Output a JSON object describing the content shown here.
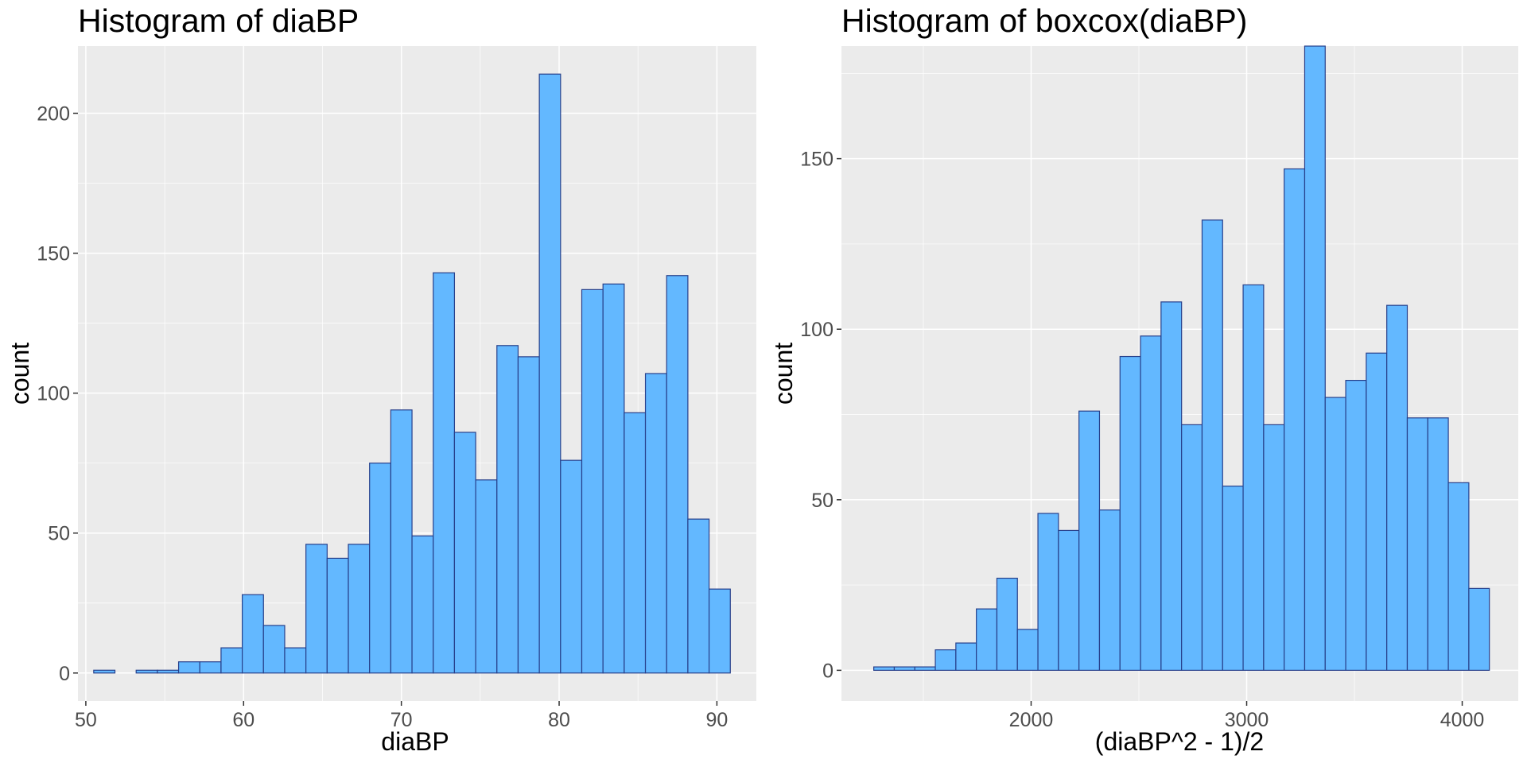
{
  "colors": {
    "bar_fill": "#63b8ff",
    "bar_outline": "#27408b",
    "panel_bg": "#ebebeb",
    "grid": "#ffffff"
  },
  "chart_data": [
    {
      "type": "bar",
      "title": "Histogram of diaBP",
      "xlabel": "diaBP",
      "ylabel": "count",
      "xlim": [
        49.5,
        92.5
      ],
      "ylim": [
        -10,
        224
      ],
      "xticks": [
        50,
        60,
        70,
        80,
        90
      ],
      "yticks": [
        0,
        50,
        100,
        150,
        200
      ],
      "grid": true,
      "bin_start": 50.5,
      "bin_width": 1.345,
      "values": [
        1,
        0,
        1,
        1,
        4,
        4,
        9,
        28,
        17,
        9,
        46,
        41,
        46,
        75,
        94,
        49,
        143,
        86,
        69,
        117,
        113,
        214,
        76,
        137,
        139,
        93,
        107,
        142,
        55,
        30
      ]
    },
    {
      "type": "bar",
      "title": "Histogram of boxcox(diaBP)",
      "xlabel": "(diaBP^2 - 1)/2",
      "ylabel": "count",
      "xlim": [
        1120,
        4260
      ],
      "ylim": [
        -9,
        183
      ],
      "xticks": [
        2000,
        3000,
        4000
      ],
      "yticks": [
        0,
        50,
        100,
        150
      ],
      "grid": true,
      "bin_start": 1270,
      "bin_width": 95.2,
      "values": [
        1,
        1,
        1,
        6,
        8,
        18,
        27,
        12,
        46,
        41,
        76,
        47,
        92,
        98,
        108,
        72,
        132,
        54,
        113,
        72,
        147,
        183,
        80,
        85,
        93,
        107,
        74,
        74,
        55,
        24
      ]
    }
  ]
}
